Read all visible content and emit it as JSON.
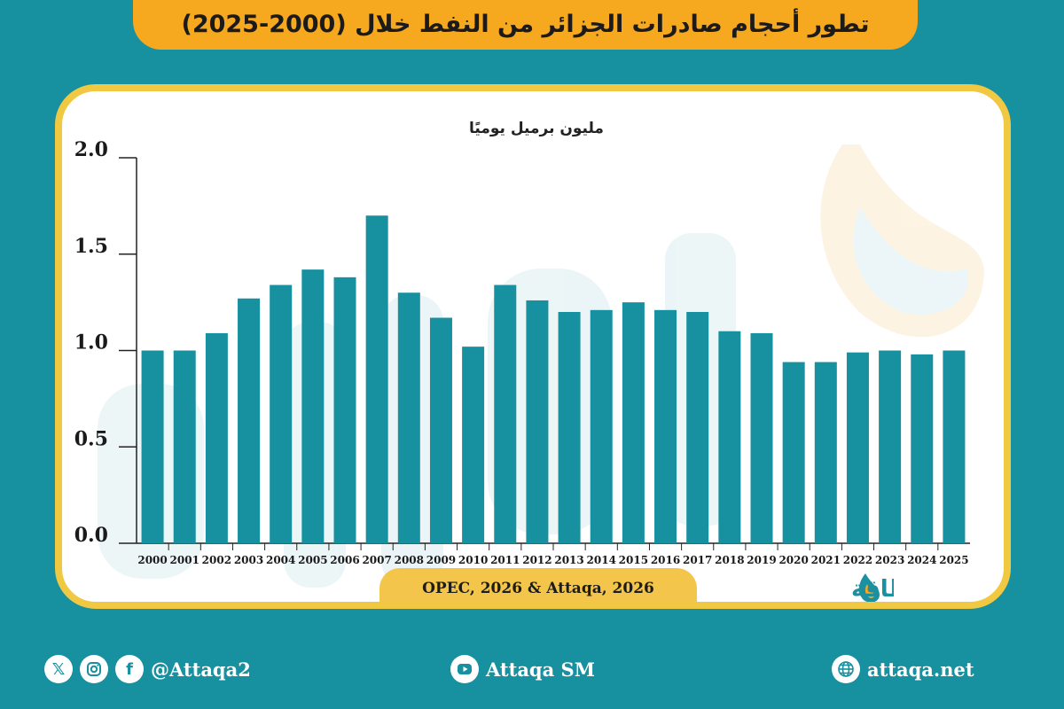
{
  "title": "تطور أحجام صادرات الجزائر من النفط خلال (2000-2025)",
  "source": "OPEC, 2026 & Attaqa, 2026",
  "brand": {
    "name": "الطاقة",
    "latin": "ATTAQA"
  },
  "footer": {
    "social_handle": "@Attaqa2",
    "youtube": "Attaqa SM",
    "website": "attaqa.net"
  },
  "colors": {
    "background": "#17909f",
    "bar": "#17909f",
    "banner": "#f6a81f",
    "card_border": "#f0c842"
  },
  "icons": [
    "x-icon",
    "instagram-icon",
    "facebook-icon",
    "youtube-icon",
    "globe-icon"
  ],
  "chart_data": {
    "type": "bar",
    "title": "",
    "ylabel": "مليون برميل يوميًا",
    "xlabel": "",
    "ylim": [
      0,
      2.0
    ],
    "yticks": [
      "0.0",
      "0.5",
      "1.0",
      "1.5",
      "2.0"
    ],
    "grid": false,
    "categories": [
      "2000",
      "2001",
      "2002",
      "2003",
      "2004",
      "2005",
      "2006",
      "2007",
      "2008",
      "2009",
      "2010",
      "2011",
      "2012",
      "2013",
      "2014",
      "2015",
      "2016",
      "2017",
      "2018",
      "2019",
      "2020",
      "2021",
      "2022",
      "2023",
      "2024",
      "2025"
    ],
    "values": [
      1.0,
      1.0,
      1.09,
      1.27,
      1.34,
      1.42,
      1.38,
      1.7,
      1.3,
      1.17,
      1.02,
      1.34,
      1.26,
      1.2,
      1.21,
      1.25,
      1.21,
      1.2,
      1.1,
      1.09,
      0.94,
      0.94,
      0.99,
      1.0,
      0.98,
      1.0
    ]
  }
}
